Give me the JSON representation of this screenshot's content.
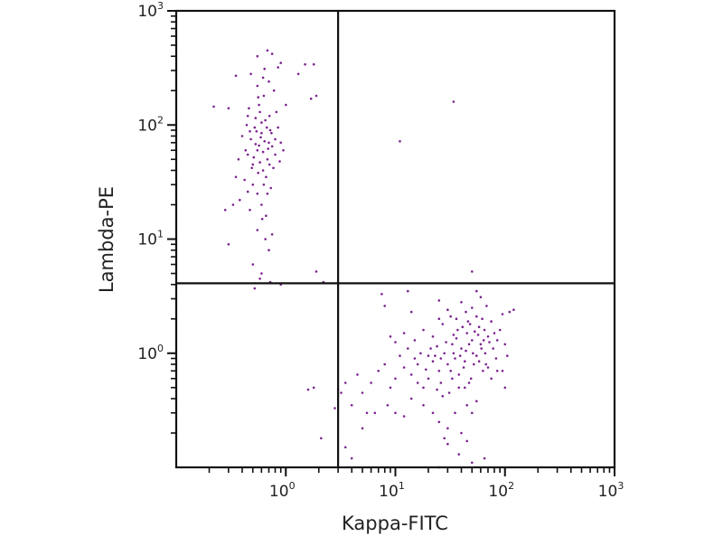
{
  "chart_data": {
    "type": "scatter",
    "title": "",
    "xlabel": "Kappa-FITC",
    "ylabel": "Lambda-PE",
    "xscale": "log",
    "yscale": "log",
    "xlim": [
      0.1,
      1000
    ],
    "ylim": [
      0.1,
      1000
    ],
    "x_ticks": [
      {
        "base": "10",
        "exp": "0",
        "value": 1
      },
      {
        "base": "10",
        "exp": "1",
        "value": 10
      },
      {
        "base": "10",
        "exp": "2",
        "value": 100
      },
      {
        "base": "10",
        "exp": "3",
        "value": 1000
      }
    ],
    "y_ticks": [
      {
        "base": "10",
        "exp": "0",
        "value": 1
      },
      {
        "base": "10",
        "exp": "1",
        "value": 10
      },
      {
        "base": "10",
        "exp": "2",
        "value": 100
      },
      {
        "base": "10",
        "exp": "3",
        "value": 1000
      }
    ],
    "grid": false,
    "legend": "none",
    "quadrant_gates": {
      "x": 3,
      "y": 4.1
    },
    "point_color": "#7b1f8e",
    "points": [
      [
        0.55,
        60
      ],
      [
        0.6,
        85
      ],
      [
        0.5,
        45
      ],
      [
        0.65,
        110
      ],
      [
        0.7,
        70
      ],
      [
        0.45,
        55
      ],
      [
        0.58,
        130
      ],
      [
        0.62,
        40
      ],
      [
        0.52,
        95
      ],
      [
        0.75,
        65
      ],
      [
        0.48,
        75
      ],
      [
        0.68,
        50
      ],
      [
        0.57,
        150
      ],
      [
        0.63,
        180
      ],
      [
        0.5,
        30
      ],
      [
        0.72,
        90
      ],
      [
        0.44,
        100
      ],
      [
        0.8,
        55
      ],
      [
        0.55,
        25
      ],
      [
        0.6,
        20
      ],
      [
        0.66,
        35
      ],
      [
        0.53,
        68
      ],
      [
        0.59,
        78
      ],
      [
        0.71,
        120
      ],
      [
        0.46,
        140
      ],
      [
        0.77,
        42
      ],
      [
        0.62,
        58
      ],
      [
        0.54,
        88
      ],
      [
        0.58,
        47
      ],
      [
        0.64,
        72
      ],
      [
        0.69,
        62
      ],
      [
        0.51,
        52
      ],
      [
        0.56,
        38
      ],
      [
        0.73,
        28
      ],
      [
        0.42,
        33
      ],
      [
        0.35,
        35
      ],
      [
        0.38,
        22
      ],
      [
        0.47,
        18
      ],
      [
        0.61,
        15
      ],
      [
        0.65,
        10
      ],
      [
        0.55,
        12
      ],
      [
        0.7,
        8
      ],
      [
        0.5,
        6
      ],
      [
        0.58,
        4.5
      ],
      [
        0.85,
        95
      ],
      [
        0.9,
        70
      ],
      [
        0.82,
        130
      ],
      [
        0.88,
        48
      ],
      [
        0.4,
        80
      ],
      [
        0.43,
        60
      ],
      [
        0.37,
        50
      ],
      [
        0.95,
        60
      ],
      [
        1.0,
        150
      ],
      [
        0.78,
        200
      ],
      [
        0.7,
        240
      ],
      [
        0.62,
        260
      ],
      [
        0.55,
        220
      ],
      [
        0.48,
        280
      ],
      [
        0.35,
        270
      ],
      [
        0.3,
        140
      ],
      [
        0.22,
        145
      ],
      [
        1.3,
        280
      ],
      [
        1.5,
        340
      ],
      [
        1.8,
        340
      ],
      [
        0.9,
        350
      ],
      [
        0.75,
        420
      ],
      [
        0.68,
        450
      ],
      [
        0.55,
        400
      ],
      [
        0.85,
        320
      ],
      [
        1.7,
        170
      ],
      [
        1.9,
        180
      ],
      [
        0.45,
        120
      ],
      [
        0.6,
        105
      ],
      [
        0.67,
        95
      ],
      [
        0.53,
        115
      ],
      [
        0.74,
        85
      ],
      [
        0.8,
        75
      ],
      [
        0.57,
        66
      ],
      [
        0.49,
        42
      ],
      [
        0.63,
        30
      ],
      [
        0.68,
        25
      ],
      [
        0.45,
        26
      ],
      [
        0.33,
        20
      ],
      [
        0.28,
        18
      ],
      [
        0.3,
        9
      ],
      [
        0.75,
        11
      ],
      [
        0.6,
        5
      ],
      [
        0.52,
        3.7
      ],
      [
        0.72,
        4.2
      ],
      [
        0.66,
        16
      ],
      [
        0.71,
        45
      ],
      [
        0.47,
        88
      ],
      [
        0.56,
        175
      ],
      [
        0.64,
        310
      ],
      [
        35,
        0.9
      ],
      [
        40,
        1.1
      ],
      [
        30,
        0.8
      ],
      [
        50,
        1.3
      ],
      [
        25,
        0.7
      ],
      [
        45,
        1.5
      ],
      [
        60,
        1.2
      ],
      [
        20,
        0.6
      ],
      [
        38,
        0.65
      ],
      [
        55,
        0.95
      ],
      [
        28,
        1.0
      ],
      [
        33,
        1.2
      ],
      [
        42,
        0.75
      ],
      [
        48,
        1.8
      ],
      [
        65,
        1.6
      ],
      [
        70,
        1.4
      ],
      [
        18,
        0.5
      ],
      [
        22,
        0.85
      ],
      [
        26,
        0.55
      ],
      [
        31,
        0.45
      ],
      [
        36,
        1.35
      ],
      [
        44,
        1.05
      ],
      [
        52,
        0.8
      ],
      [
        58,
        1.7
      ],
      [
        62,
        2.0
      ],
      [
        75,
        1.9
      ],
      [
        80,
        1.5
      ],
      [
        85,
        1.3
      ],
      [
        90,
        1.6
      ],
      [
        95,
        2.2
      ],
      [
        100,
        1.2
      ],
      [
        110,
        2.3
      ],
      [
        120,
        2.4
      ],
      [
        15,
        0.9
      ],
      [
        12,
        0.75
      ],
      [
        14,
        0.65
      ],
      [
        16,
        0.55
      ],
      [
        10,
        0.6
      ],
      [
        9,
        0.5
      ],
      [
        8,
        0.8
      ],
      [
        7,
        0.7
      ],
      [
        6,
        0.55
      ],
      [
        5,
        0.45
      ],
      [
        4.5,
        0.65
      ],
      [
        3.5,
        0.55
      ],
      [
        3.2,
        0.45
      ],
      [
        4,
        0.35
      ],
      [
        5.5,
        0.3
      ],
      [
        6.5,
        0.3
      ],
      [
        8.5,
        0.35
      ],
      [
        10,
        0.3
      ],
      [
        12,
        0.28
      ],
      [
        14,
        0.4
      ],
      [
        18,
        0.35
      ],
      [
        22,
        0.3
      ],
      [
        25,
        0.25
      ],
      [
        30,
        0.22
      ],
      [
        28,
        0.18
      ],
      [
        35,
        0.3
      ],
      [
        40,
        0.2
      ],
      [
        45,
        0.35
      ],
      [
        50,
        0.3
      ],
      [
        55,
        0.38
      ],
      [
        38,
        0.5
      ],
      [
        33,
        0.6
      ],
      [
        27,
        0.42
      ],
      [
        24,
        0.48
      ],
      [
        19,
        0.72
      ],
      [
        17,
        1.0
      ],
      [
        21,
        1.1
      ],
      [
        23,
        0.95
      ],
      [
        29,
        1.25
      ],
      [
        34,
        1.45
      ],
      [
        37,
        1.6
      ],
      [
        41,
        1.7
      ],
      [
        46,
        1.9
      ],
      [
        53,
        1.55
      ],
      [
        57,
        1.45
      ],
      [
        61,
        1.1
      ],
      [
        66,
        1.0
      ],
      [
        72,
        1.25
      ],
      [
        78,
        1.1
      ],
      [
        83,
        0.9
      ],
      [
        67,
        0.8
      ],
      [
        63,
        0.7
      ],
      [
        49,
        0.6
      ],
      [
        47,
        0.55
      ],
      [
        43,
        0.5
      ],
      [
        39,
        0.95
      ],
      [
        32,
        0.7
      ],
      [
        26,
        0.9
      ],
      [
        24,
        1.15
      ],
      [
        20,
        0.95
      ],
      [
        16,
        0.8
      ],
      [
        13,
        1.1
      ],
      [
        11,
        0.95
      ],
      [
        10,
        1.25
      ],
      [
        9,
        1.4
      ],
      [
        12,
        1.5
      ],
      [
        15,
        1.3
      ],
      [
        18,
        1.6
      ],
      [
        22,
        1.4
      ],
      [
        27,
        1.8
      ],
      [
        32,
        2.1
      ],
      [
        36,
        2.0
      ],
      [
        44,
        2.3
      ],
      [
        50,
        2.5
      ],
      [
        55,
        2.1
      ],
      [
        68,
        2.6
      ],
      [
        40,
        2.8
      ],
      [
        30,
        2.4
      ],
      [
        25,
        2.0
      ],
      [
        14,
        2.3
      ],
      [
        8,
        2.6
      ],
      [
        7.5,
        3.3
      ],
      [
        13,
        3.5
      ],
      [
        25,
        2.9
      ],
      [
        55,
        3.5
      ],
      [
        60,
        3.1
      ],
      [
        34,
        1.0
      ],
      [
        43,
        0.85
      ],
      [
        47,
        1.2
      ],
      [
        51,
        1.0
      ],
      [
        58,
        0.85
      ],
      [
        64,
        1.3
      ],
      [
        70,
        0.75
      ],
      [
        75,
        0.6
      ],
      [
        85,
        0.7
      ],
      [
        3,
        0.48
      ],
      [
        2.8,
        0.33
      ],
      [
        1.6,
        0.48
      ],
      [
        1.8,
        0.5
      ],
      [
        2.1,
        0.18
      ],
      [
        3.5,
        0.15
      ],
      [
        5,
        0.22
      ],
      [
        4,
        0.12
      ],
      [
        25,
        0.1
      ],
      [
        50,
        0.11
      ],
      [
        38,
        0.13
      ],
      [
        30,
        0.16
      ],
      [
        45,
        0.17
      ],
      [
        65,
        0.12
      ],
      [
        95,
        0.7
      ],
      [
        100,
        0.5
      ],
      [
        105,
        0.95
      ],
      [
        11,
        72
      ],
      [
        34,
        160
      ],
      [
        50,
        5.2
      ],
      [
        1.9,
        5.2
      ],
      [
        2.2,
        4.2
      ],
      [
        0.9,
        4.0
      ]
    ]
  }
}
